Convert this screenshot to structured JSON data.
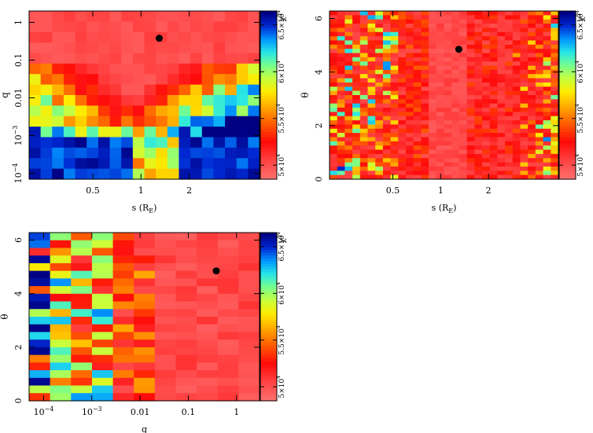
{
  "chart_data": [
    {
      "type": "heatmap",
      "id": "s-q",
      "xlabel": "s (R_E)",
      "xlabel_main": "s (R",
      "xlabel_sub": "E",
      "xlabel_end": ")",
      "ylabel": "q",
      "x_scale": "log",
      "y_scale": "log",
      "xlim": [
        0.2,
        5.5
      ],
      "ylim": [
        7e-05,
        2.0
      ],
      "x_ticks": [
        {
          "value": 0.5,
          "label": "0.5"
        },
        {
          "value": 1,
          "label": "1"
        },
        {
          "value": 2,
          "label": "2"
        }
      ],
      "y_ticks": [
        {
          "value": 1,
          "label": "1"
        },
        {
          "value": 0.1,
          "label": "0.1"
        },
        {
          "value": 0.01,
          "label": "0.01"
        },
        {
          "value": 0.001,
          "label": "10^-3",
          "base": "10",
          "exp": "−3"
        },
        {
          "value": 0.0001,
          "label": "10^-4",
          "base": "10",
          "exp": "−4"
        }
      ],
      "best_fit": {
        "x": 1.3,
        "y": 0.38
      },
      "colorbar": {
        "label": "χ²",
        "label_main": "χ",
        "label_exp": "2",
        "vmin": 48500.0,
        "vmax": 66500.0,
        "ticks": [
          {
            "value": 50000.0,
            "label": "5×10^4",
            "mant": "5×10",
            "exp": "4"
          },
          {
            "value": 55000.0,
            "label": "5.5×10^4",
            "mant": "5.5×10",
            "exp": "4"
          },
          {
            "value": 60000.0,
            "label": "6×10^4",
            "mant": "6×10",
            "exp": "4"
          },
          {
            "value": 65000.0,
            "label": "6.5×10^4",
            "mant": "6.5×10",
            "exp": "4"
          }
        ]
      },
      "grid": {
        "nx": 20,
        "ny": 16,
        "description": "chi-square minimum over s (cols, low→high) and log q (rows, top=high q → bottom=low q)"
      }
    },
    {
      "type": "heatmap",
      "id": "s-theta",
      "xlabel": "s (R_E)",
      "xlabel_main": "s (R",
      "xlabel_sub": "E",
      "xlabel_end": ")",
      "ylabel": "θ",
      "x_scale": "log",
      "y_scale": "linear",
      "xlim": [
        0.2,
        5.5
      ],
      "ylim": [
        0,
        6.28
      ],
      "x_ticks": [
        {
          "value": 0.5,
          "label": "0.5"
        },
        {
          "value": 1,
          "label": "1"
        },
        {
          "value": 2,
          "label": "2"
        }
      ],
      "y_ticks": [
        {
          "value": 0,
          "label": "0"
        },
        {
          "value": 2,
          "label": "2"
        },
        {
          "value": 4,
          "label": "4"
        },
        {
          "value": 6,
          "label": "6"
        }
      ],
      "best_fit": {
        "x": 1.3,
        "y": 4.85
      },
      "colorbar": {
        "label": "χ²",
        "label_main": "χ",
        "label_exp": "2",
        "vmin": 48500.0,
        "vmax": 66500.0,
        "ticks": [
          {
            "value": 50000.0,
            "label": "5×10^4",
            "mant": "5×10",
            "exp": "4"
          },
          {
            "value": 55000.0,
            "label": "5.5×10^4",
            "mant": "5.5×10",
            "exp": "4"
          },
          {
            "value": 60000.0,
            "label": "6×10^4",
            "mant": "6×10",
            "exp": "4"
          },
          {
            "value": 65000.0,
            "label": "6.5×10^4",
            "mant": "6.5×10",
            "exp": "4"
          }
        ]
      },
      "grid": {
        "nx": 30,
        "ny": 40,
        "description": "chi-square minimum over s (cols) and θ (rows)"
      }
    },
    {
      "type": "heatmap",
      "id": "q-theta",
      "xlabel": "q",
      "xlabel_main": "q",
      "ylabel": "θ",
      "x_scale": "log",
      "y_scale": "linear",
      "xlim": [
        5e-05,
        3.0
      ],
      "ylim": [
        0,
        6.28
      ],
      "x_ticks": [
        {
          "value": 0.0001,
          "label": "10^-4",
          "base": "10",
          "exp": "−4"
        },
        {
          "value": 0.001,
          "label": "10^-3",
          "base": "10",
          "exp": "−3"
        },
        {
          "value": 0.01,
          "label": "0.01"
        },
        {
          "value": 0.1,
          "label": "0.1"
        },
        {
          "value": 1,
          "label": "1"
        }
      ],
      "y_ticks": [
        {
          "value": 0,
          "label": "0"
        },
        {
          "value": 2,
          "label": "2"
        },
        {
          "value": 4,
          "label": "4"
        },
        {
          "value": 6,
          "label": "6"
        }
      ],
      "best_fit": {
        "x": 0.38,
        "y": 4.85
      },
      "colorbar": {
        "label": "χ²",
        "label_main": "χ",
        "label_exp": "2",
        "vmin": 48500.0,
        "vmax": 66500.0,
        "ticks": [
          {
            "value": 50000.0,
            "label": "5×10^4",
            "mant": "5×10",
            "exp": "4"
          },
          {
            "value": 55000.0,
            "label": "5.5×10^4",
            "mant": "5.5×10",
            "exp": "4"
          },
          {
            "value": 60000.0,
            "label": "6×10^4",
            "mant": "6×10",
            "exp": "4"
          },
          {
            "value": 65000.0,
            "label": "6.5×10^4",
            "mant": "6.5×10",
            "exp": "4"
          }
        ]
      },
      "grid": {
        "nx": 11,
        "ny": 22,
        "description": "chi-square minimum over log q (cols) and θ (rows)"
      }
    }
  ]
}
